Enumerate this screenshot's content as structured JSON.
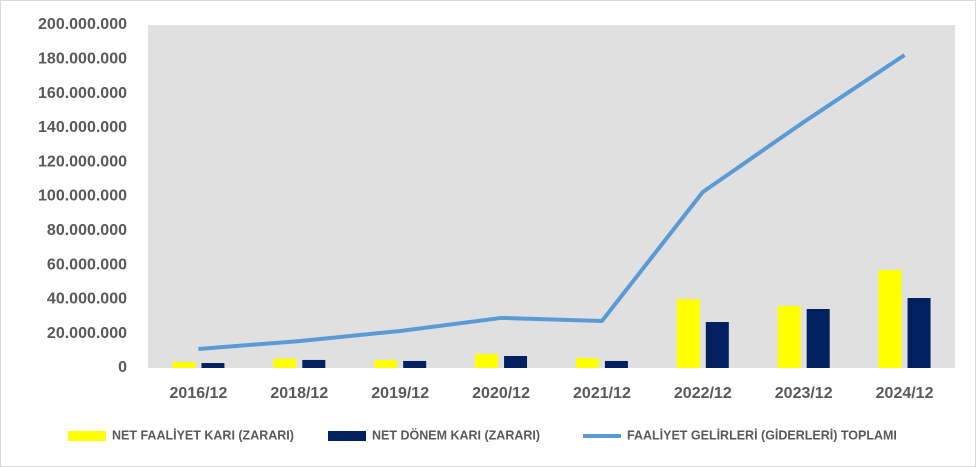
{
  "chart_data": {
    "type": "bar",
    "categories": [
      "2016/12",
      "2018/12",
      "2019/12",
      "2020/12",
      "2021/12",
      "2022/12",
      "2023/12",
      "2024/12"
    ],
    "series": [
      {
        "name": "NET FAALİYET KARI (ZARARI)",
        "type": "bar",
        "color": "#ffff00",
        "values": [
          3500000,
          5500000,
          4700000,
          8200000,
          5800000,
          40200000,
          36200000,
          57100000
        ]
      },
      {
        "name": "NET DÖNEM KARI (ZARARI)",
        "type": "bar",
        "color": "#002060",
        "values": [
          2900000,
          4700000,
          4100000,
          7000000,
          4100000,
          26800000,
          34400000,
          40800000
        ]
      },
      {
        "name": "FAALİYET GELİRLERİ (GİDERLERİ) TOPLAMI",
        "type": "line",
        "color": "#5b9bd5",
        "values": [
          11100000,
          15700000,
          21600000,
          29200000,
          27400000,
          102600000,
          143400000,
          182500000
        ]
      }
    ],
    "ylim": [
      0,
      200000000
    ],
    "yticks": [
      0,
      {
        "value": 20000000,
        "label": "20.000.000"
      },
      {
        "value": 40000000,
        "label": "40.000.000"
      },
      {
        "value": 60000000,
        "label": "60.000.000"
      },
      {
        "value": 80000000,
        "label": "80.000.000"
      },
      {
        "value": 100000000,
        "label": "100.000.000"
      },
      {
        "value": 120000000,
        "label": "120.000.000"
      },
      {
        "value": 140000000,
        "label": "140.000.000"
      },
      {
        "value": 160000000,
        "label": "160.000.000"
      },
      {
        "value": 180000000,
        "label": "180.000.000"
      },
      {
        "value": 200000000,
        "label": "200.000.000"
      }
    ],
    "grid": false,
    "legend": "bottom"
  }
}
